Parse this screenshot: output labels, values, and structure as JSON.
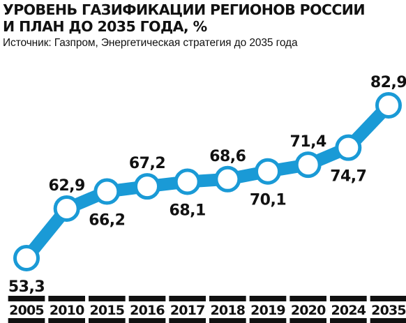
{
  "header": {
    "title_line1": "УРОВЕНЬ ГАЗИФИКАЦИИ РЕГИОНОВ РОССИИ",
    "title_line2": "И ПЛАН ДО 2035 ГОДА, %",
    "source": "Источник: Газпром, Энергетическая стратегия до 2035 года"
  },
  "colors": {
    "line": "#1a9ad6",
    "marker_fill": "#ffffff",
    "text": "#111111",
    "axis_bar": "#111111"
  },
  "chart_data": {
    "type": "line",
    "title": "УРОВЕНЬ ГАЗИФИКАЦИИ РЕГИОНОВ РОССИИ И ПЛАН ДО 2035 ГОДА, %",
    "categories": [
      "2005",
      "2010",
      "2015",
      "2016",
      "2017",
      "2018",
      "2019",
      "2020",
      "2024",
      "2035"
    ],
    "values": [
      53.3,
      62.9,
      66.2,
      67.2,
      68.1,
      68.6,
      70.1,
      71.4,
      74.7,
      82.9
    ],
    "value_labels": [
      "53,3",
      "62,9",
      "66,2",
      "67,2",
      "68,1",
      "68,6",
      "70,1",
      "71,4",
      "74,7",
      "82,9"
    ],
    "label_positions": [
      "below",
      "above",
      "below",
      "above",
      "below",
      "above",
      "below",
      "above",
      "below",
      "above"
    ],
    "x_axis": "categorical, evenly spaced",
    "grid": false,
    "legend": "none"
  }
}
